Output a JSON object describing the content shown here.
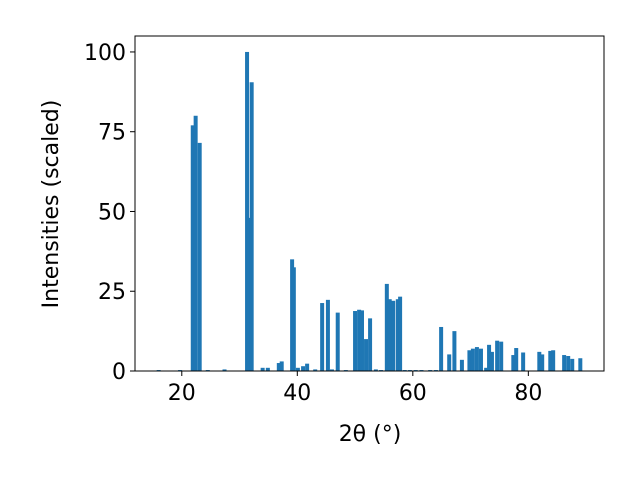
{
  "chart_data": {
    "type": "bar",
    "x_label": "2θ (°)",
    "y_label": "Intensities (scaled)",
    "color": "#1f77b4",
    "xlim": [
      11.9,
      93.1
    ],
    "xticks": [
      20,
      40,
      60,
      80
    ],
    "ylim": [
      0,
      105
    ],
    "yticks": [
      0,
      25,
      50,
      75,
      100
    ],
    "x": [
      16.0,
      19.7,
      21.9,
      22.4,
      23.1,
      24.5,
      27.4,
      31.3,
      31.6,
      32.1,
      34.0,
      34.9,
      36.8,
      37.3,
      39.1,
      39.4,
      40.1,
      41.0,
      41.7,
      43.1,
      44.3,
      45.3,
      46.0,
      47.0,
      48.4,
      50.0,
      50.7,
      51.2,
      51.9,
      52.6,
      53.6,
      54.5,
      55.5,
      56.0,
      56.6,
      57.4,
      57.8,
      58.6,
      59.5,
      60.5,
      61.5,
      63.0,
      64.0,
      64.9,
      66.3,
      67.2,
      68.5,
      69.8,
      70.4,
      71.1,
      71.8,
      72.7,
      73.2,
      73.7,
      74.6,
      75.3,
      77.4,
      77.9,
      79.1,
      81.9,
      82.4,
      83.8,
      84.3,
      86.2,
      86.9,
      87.6,
      89.0
    ],
    "values": [
      0.3,
      0.3,
      77,
      80,
      71.5,
      0.3,
      0.5,
      100,
      48,
      90.5,
      1,
      1,
      2.5,
      3,
      35,
      32.5,
      1,
      1.5,
      2.3,
      0.5,
      21.3,
      22.3,
      0.5,
      18.3,
      0.3,
      18.8,
      19.2,
      19,
      10,
      16.5,
      0.5,
      0.3,
      27.3,
      22.5,
      22,
      22.5,
      23.3,
      0.3,
      0.3,
      0.3,
      0.3,
      0.3,
      0.3,
      13.8,
      5.2,
      12.5,
      3.5,
      6.5,
      7,
      7.5,
      7,
      1,
      8.2,
      6,
      9.5,
      9.2,
      5,
      7.2,
      5.8,
      6,
      5.2,
      6.3,
      6.5,
      5,
      4.7,
      3.8,
      4
    ]
  }
}
